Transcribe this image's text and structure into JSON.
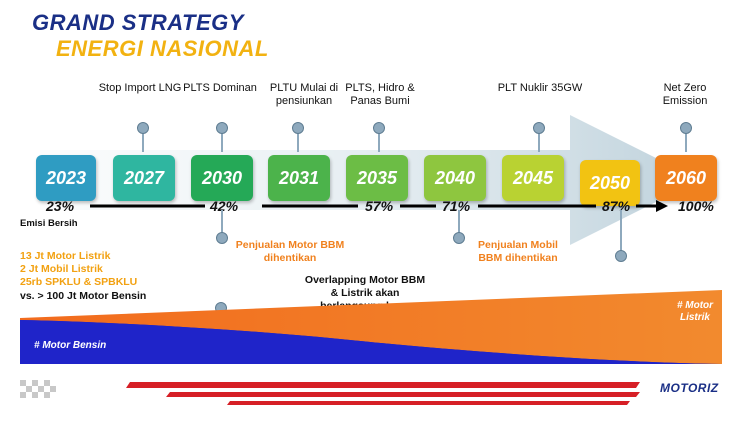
{
  "title": {
    "line1": "GRAND STRATEGY",
    "line2": "ENERGI NASIONAL"
  },
  "milestones_top": [
    {
      "text": "Stop Import LNG"
    },
    {
      "text": "PLTS Dominan"
    },
    {
      "text": "PLTU Mulai di pensiunkan"
    },
    {
      "text": "PLTS, Hidro & Panas Bumi"
    },
    {
      "text": "PLT Nuklir 35GW"
    },
    {
      "text": "Net Zero Emission"
    }
  ],
  "years": [
    "2023",
    "2027",
    "2030",
    "2031",
    "2035",
    "2040",
    "2045",
    "2050",
    "2060"
  ],
  "year_colors": [
    "#2f9cc2",
    "#2fb6a0",
    "#25a957",
    "#4cb34b",
    "#6cbd45",
    "#8ec63f",
    "#b9d232",
    "#f2c312",
    "#f0811e"
  ],
  "percentages": [
    "23%",
    "42%",
    "57%",
    "71%",
    "87%",
    "100%"
  ],
  "emisi_label": "Emisi Bersih",
  "milestones_bottom": [
    {
      "text": "Penjualan Motor BBM dihentikan"
    },
    {
      "text": "Penjualan Mobil BBM dihentikan"
    }
  ],
  "left_notes": {
    "items": [
      "13 Jt Motor Listrik",
      "2 Jt Mobil Listrik",
      "25rb SPKLU & SPBKLU"
    ],
    "compare": "vs. > 100 Jt Motor Bensin"
  },
  "overlap_note": "Overlapping Motor BBM & Listrik akan berlangsung lama",
  "area": {
    "left_label": "# Motor Bensin",
    "right_label": "# Motor Listrik"
  },
  "logo": "MOTORIZ"
}
